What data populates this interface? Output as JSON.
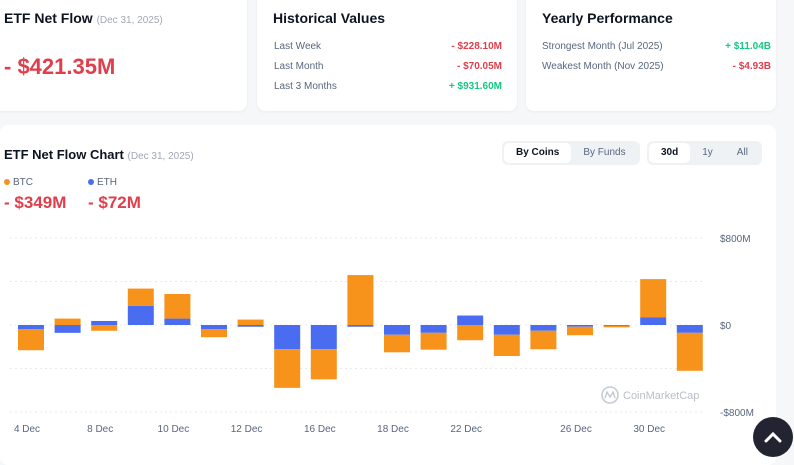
{
  "net_flow": {
    "title": "ETF Net Flow",
    "date": "(Dec 31, 2025)",
    "value": "- $421.35M"
  },
  "historical": {
    "title": "Historical Values",
    "rows": [
      {
        "label": "Last Week",
        "value": "- $228.10M",
        "sign": "neg"
      },
      {
        "label": "Last Month",
        "value": "- $70.05M",
        "sign": "neg"
      },
      {
        "label": "Last 3 Months",
        "value": "+ $931.60M",
        "sign": "pos"
      }
    ]
  },
  "yearly": {
    "title": "Yearly Performance",
    "rows": [
      {
        "label": "Strongest Month (Jul 2025)",
        "value": "+ $11.04B",
        "sign": "pos"
      },
      {
        "label": "Weakest Month (Nov 2025)",
        "value": "- $4.93B",
        "sign": "neg"
      }
    ]
  },
  "chart_panel": {
    "title": "ETF Net Flow Chart",
    "date": "(Dec 31, 2025)",
    "view_toggle": [
      "By Coins",
      "By Funds"
    ],
    "view_selected": "By Coins",
    "range_toggle": [
      "30d",
      "1y",
      "All"
    ],
    "range_selected": "30d",
    "legend": [
      {
        "name": "BTC",
        "value": "- $349M",
        "color": "#f7931a"
      },
      {
        "name": "ETH",
        "value": "- $72M",
        "color": "#4a6cf0"
      }
    ],
    "watermark": "CoinMarketCap"
  },
  "chart_data": {
    "type": "bar",
    "stacked": true,
    "categories": [
      "4 Dec",
      "5 Dec",
      "8 Dec",
      "9 Dec",
      "10 Dec",
      "11 Dec",
      "12 Dec",
      "15 Dec",
      "16 Dec",
      "17 Dec",
      "18 Dec",
      "19 Dec",
      "22 Dec",
      "23 Dec",
      "24 Dec",
      "26 Dec",
      "29 Dec",
      "30 Dec",
      "31 Dec"
    ],
    "x_tick_labels": [
      "4 Dec",
      "8 Dec",
      "10 Dec",
      "12 Dec",
      "16 Dec",
      "18 Dec",
      "22 Dec",
      "26 Dec",
      "30 Dec"
    ],
    "series": [
      {
        "name": "BTC",
        "color": "#f7931a",
        "values": [
          -195,
          59,
          -53,
          158,
          226,
          -75,
          50,
          -355,
          -277,
          459,
          -161,
          -155,
          -140,
          -195,
          -170,
          -78,
          -16,
          350,
          -349
        ]
      },
      {
        "name": "ETH",
        "color": "#4a6cf0",
        "values": [
          -37,
          -72,
          37,
          177,
          59,
          -37,
          -16,
          -223,
          -223,
          -16,
          -90,
          -72,
          87,
          -90,
          -53,
          -16,
          -5,
          72,
          -72
        ]
      }
    ],
    "y_tick_labels": [
      "$800M",
      "$0",
      "-$800M"
    ],
    "ylim": [
      -800,
      800
    ],
    "grid": true,
    "unit": "M USD"
  },
  "scroll_top_icon": "chevron-up-icon"
}
